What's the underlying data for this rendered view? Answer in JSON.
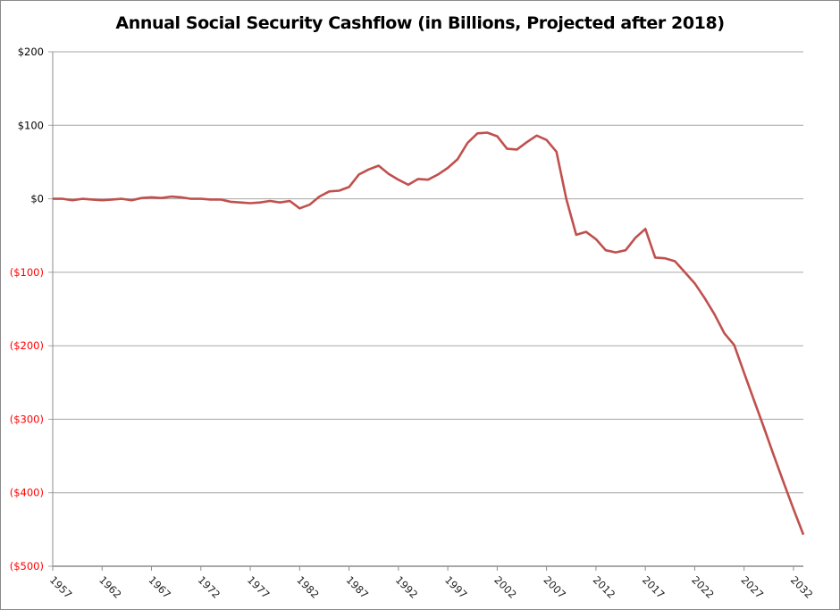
{
  "chart_data": {
    "type": "line",
    "title": "Annual Social Security Cashflow (in Billions, Projected after 2018)",
    "xlabel": "",
    "ylabel": "",
    "ylim": [
      -500,
      200
    ],
    "yticks": [
      200,
      100,
      0,
      -100,
      -200,
      -300,
      -400,
      -500
    ],
    "ytick_labels": [
      "$200",
      "$100",
      "$0",
      "($100)",
      "($200)",
      "($300)",
      "($400)",
      "($500)"
    ],
    "xtick_labels": [
      "1957",
      "1962",
      "1967",
      "1972",
      "1977",
      "1982",
      "1987",
      "1992",
      "1997",
      "2002",
      "2007",
      "2012",
      "2017",
      "2022",
      "2027",
      "2032"
    ],
    "grid": true,
    "colors": {
      "line": "#c0504d",
      "negative_label": "#ff0000",
      "positive_label": "#000000",
      "grid": "#a6a6a6"
    },
    "series": [
      {
        "x": [
          1957,
          1958,
          1959,
          1960,
          1961,
          1962,
          1963,
          1964,
          1965,
          1966,
          1967,
          1968,
          1969,
          1970,
          1971,
          1972,
          1973,
          1974,
          1975,
          1976,
          1977,
          1978,
          1979,
          1980,
          1981,
          1982,
          1983,
          1984,
          1985,
          1986,
          1987,
          1988,
          1989,
          1990,
          1991,
          1992,
          1993,
          1994,
          1995,
          1996,
          1997,
          1998,
          1999,
          2000,
          2001,
          2002,
          2003,
          2004,
          2005,
          2006,
          2007,
          2008,
          2009,
          2010,
          2011,
          2012,
          2013,
          2014,
          2015,
          2016,
          2017,
          2018,
          2019,
          2020,
          2021,
          2022,
          2023,
          2024,
          2025,
          2026,
          2027,
          2028,
          2029,
          2030,
          2031,
          2032,
          2033
        ],
        "values": [
          0,
          0,
          -2,
          0,
          -1,
          -2,
          -1,
          0,
          -2,
          1,
          2,
          1,
          3,
          2,
          0,
          0,
          -1,
          -1,
          -4,
          -5,
          -6,
          -5,
          -3,
          -5,
          -3,
          -13,
          -8,
          3,
          10,
          11,
          16,
          33,
          40,
          45,
          34,
          26,
          19,
          27,
          26,
          33,
          42,
          54,
          76,
          89,
          90,
          85,
          68,
          67,
          77,
          86,
          80,
          64,
          0,
          -49,
          -45,
          -55,
          -70,
          -73,
          -70,
          -53,
          -41,
          -80,
          -81,
          -85,
          -100,
          -115,
          -135,
          -157,
          -183,
          -199,
          -237,
          -274,
          -311,
          -349,
          -386,
          -422,
          -457
        ]
      }
    ]
  }
}
